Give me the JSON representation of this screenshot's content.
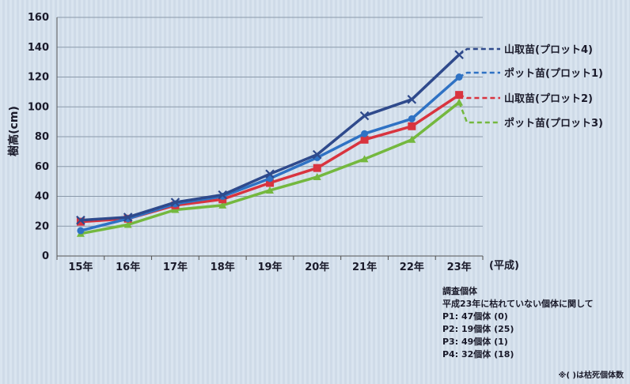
{
  "chart_data": {
    "type": "line",
    "ylabel": "樹高(cm)",
    "xunit": "(平成)",
    "categories": [
      "15年",
      "16年",
      "17年",
      "18年",
      "19年",
      "20年",
      "21年",
      "22年",
      "23年"
    ],
    "ylim": [
      0,
      160
    ],
    "yticks": [
      0,
      20,
      40,
      60,
      80,
      100,
      120,
      140,
      160
    ],
    "grid": true,
    "legend_position": "right",
    "series": [
      {
        "name": "山取苗(プロット4)",
        "color": "#2f4a8c",
        "marker": "x",
        "values": [
          24,
          26,
          36,
          41,
          55,
          68,
          94,
          105,
          135
        ]
      },
      {
        "name": "ポット苗(プロット1)",
        "color": "#2f72c4",
        "marker": "circle",
        "values": [
          17,
          25,
          35,
          40,
          52,
          66,
          82,
          92,
          120
        ]
      },
      {
        "name": "山取苗(プロット2)",
        "color": "#d9343f",
        "marker": "square",
        "values": [
          23,
          25,
          34,
          38,
          49,
          59,
          78,
          87,
          108
        ]
      },
      {
        "name": "ポット苗(プロット3)",
        "color": "#74b83e",
        "marker": "triangle",
        "values": [
          15,
          21,
          31,
          34,
          44,
          53,
          65,
          78,
          103
        ]
      }
    ]
  },
  "notes": {
    "title": "調査個体",
    "subtitle": "平成23年に枯れていない個体に関して",
    "lines": [
      "P1:  47個体 (0)",
      "P2:  19個体 (25)",
      "P3:  49個体 (1)",
      "P4:  32個体 (18)"
    ],
    "footnote": "※( )は枯死個体数"
  }
}
